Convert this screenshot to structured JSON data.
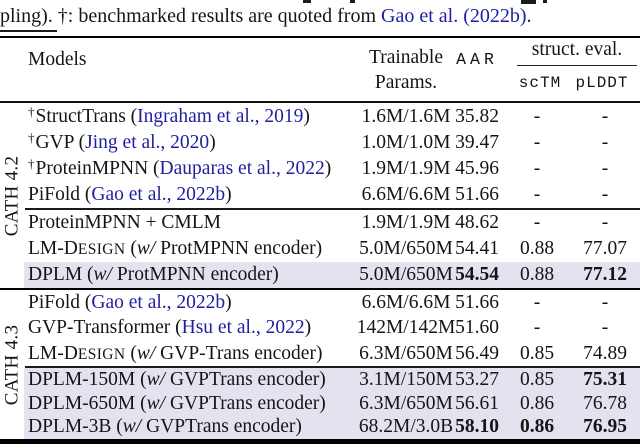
{
  "caption": {
    "prefix": "pling). †: benchmarked results are quoted from ",
    "citation": "Gao et al. (2022b)",
    "suffix": "."
  },
  "table": {
    "header": {
      "models": "Models",
      "trainable_line1": "Trainable",
      "trainable_line2": "Params.",
      "aar": "AAR",
      "struct_eval": "struct. eval.",
      "sctm": "scTM",
      "plddt": "pLDDT"
    },
    "groups": [
      {
        "label": "CATH 4.2",
        "sections": [
          {
            "rows": [
              {
                "name": [
                  [
                    "sup",
                    "†"
                  ],
                  [
                    "",
                    "StructTrans ("
                  ],
                  [
                    "cite",
                    "Ingraham et al., 2019"
                  ],
                  [
                    "",
                    ")"
                  ]
                ],
                "params": "1.6M/1.6M",
                "aar": "35.82",
                "sctm": "-",
                "plddt": "-",
                "highlight": false,
                "bold": []
              },
              {
                "name": [
                  [
                    "sup",
                    "†"
                  ],
                  [
                    "",
                    "GVP ("
                  ],
                  [
                    "cite",
                    "Jing et al., 2020"
                  ],
                  [
                    "",
                    ")"
                  ]
                ],
                "params": "1.0M/1.0M",
                "aar": "39.47",
                "sctm": "-",
                "plddt": "-",
                "highlight": false,
                "bold": []
              },
              {
                "name": [
                  [
                    "sup",
                    "†"
                  ],
                  [
                    "",
                    "ProteinMPNN ("
                  ],
                  [
                    "cite",
                    "Dauparas et al., 2022"
                  ],
                  [
                    "",
                    ")"
                  ]
                ],
                "params": "1.9M/1.9M",
                "aar": "45.96",
                "sctm": "-",
                "plddt": "-",
                "highlight": false,
                "bold": []
              },
              {
                "name": [
                  [
                    "",
                    "PiFold ("
                  ],
                  [
                    "cite",
                    "Gao et al., 2022b"
                  ],
                  [
                    "",
                    ")"
                  ]
                ],
                "params": "6.6M/6.6M",
                "aar": "51.66",
                "sctm": "-",
                "plddt": "-",
                "highlight": false,
                "bold": []
              }
            ]
          },
          {
            "rows": [
              {
                "name": [
                  [
                    "",
                    "ProteinMPNN + CMLM"
                  ]
                ],
                "params": "1.9M/1.9M",
                "aar": "48.62",
                "sctm": "-",
                "plddt": "-",
                "highlight": false,
                "bold": []
              },
              {
                "name": [
                  [
                    "",
                    "LM-D"
                  ],
                  [
                    "sc",
                    "ESIGN"
                  ],
                  [
                    "",
                    " ("
                  ],
                  [
                    "i",
                    "w/"
                  ],
                  [
                    "",
                    " ProtMPNN encoder)"
                  ]
                ],
                "params": "5.0M/650M",
                "aar": "54.41",
                "sctm": "0.88",
                "plddt": "77.07",
                "highlight": false,
                "bold": []
              },
              {
                "name": [
                  [
                    "",
                    "DPLM ("
                  ],
                  [
                    "i",
                    "w/"
                  ],
                  [
                    "",
                    " ProtMPNN encoder)"
                  ]
                ],
                "params": "5.0M/650M",
                "aar": "54.54",
                "sctm": "0.88",
                "plddt": "77.12",
                "highlight": true,
                "bold": [
                  "aar",
                  "plddt"
                ]
              }
            ]
          }
        ]
      },
      {
        "label": "CATH 4.3",
        "sections": [
          {
            "rows": [
              {
                "name": [
                  [
                    "",
                    "PiFold ("
                  ],
                  [
                    "cite",
                    "Gao et al., 2022b"
                  ],
                  [
                    "",
                    ")"
                  ]
                ],
                "params": "6.6M/6.6M",
                "aar": "51.66",
                "sctm": "-",
                "plddt": "-",
                "highlight": false,
                "bold": []
              },
              {
                "name": [
                  [
                    "",
                    "GVP-Transformer ("
                  ],
                  [
                    "cite",
                    "Hsu et al., 2022"
                  ],
                  [
                    "",
                    ")"
                  ]
                ],
                "params": "142M/142M",
                "aar": "51.60",
                "sctm": "-",
                "plddt": "-",
                "highlight": false,
                "bold": []
              },
              {
                "name": [
                  [
                    "",
                    "LM-D"
                  ],
                  [
                    "sc",
                    "ESIGN"
                  ],
                  [
                    "",
                    " ("
                  ],
                  [
                    "i",
                    "w/"
                  ],
                  [
                    "",
                    " GVP-Trans encoder)"
                  ]
                ],
                "params": "6.3M/650M",
                "aar": "56.49",
                "sctm": "0.85",
                "plddt": "74.89",
                "highlight": false,
                "bold": []
              }
            ]
          },
          {
            "rows": [
              {
                "name": [
                  [
                    "",
                    "DPLM-150M ("
                  ],
                  [
                    "i",
                    "w/"
                  ],
                  [
                    "",
                    " GVPTrans encoder)"
                  ]
                ],
                "params": "3.1M/150M",
                "aar": "53.27",
                "sctm": "0.85",
                "plddt": "75.31",
                "highlight": true,
                "bold": [
                  "plddt"
                ]
              },
              {
                "name": [
                  [
                    "",
                    "DPLM-650M ("
                  ],
                  [
                    "i",
                    "w/"
                  ],
                  [
                    "",
                    " GVPTrans encoder)"
                  ]
                ],
                "params": "6.3M/650M",
                "aar": "56.61",
                "sctm": "0.86",
                "plddt": "76.78",
                "highlight": true,
                "bold": []
              },
              {
                "name": [
                  [
                    "",
                    "DPLM-3B ("
                  ],
                  [
                    "i",
                    "w/"
                  ],
                  [
                    "",
                    " GVPTrans encoder)"
                  ]
                ],
                "params": "68.2M/3.0B",
                "aar": "58.10",
                "sctm": "0.86",
                "plddt": "76.95",
                "highlight": true,
                "bold": [
                  "aar",
                  "sctm",
                  "plddt"
                ]
              }
            ]
          }
        ]
      }
    ]
  },
  "colors": {
    "citation_blue": "#1f1f9f",
    "highlight_bg": "#e5e2ef",
    "text": "#151515"
  }
}
